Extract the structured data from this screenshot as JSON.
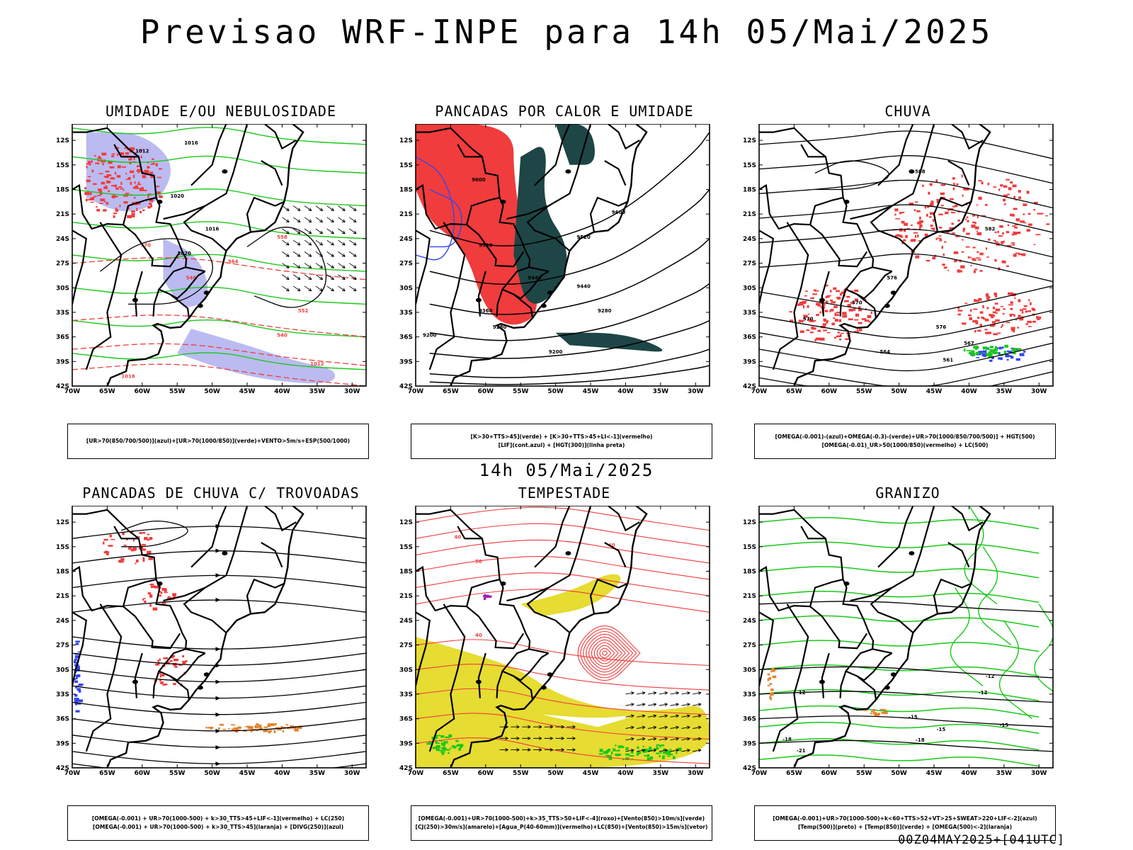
{
  "header": {
    "title": "Previsao WRF-INPE  para 14h 05/Mai/2025"
  },
  "middle": {
    "title": "14h 05/Mai/2025"
  },
  "footer": {
    "run_info": "00Z04MAY2025+[041UTC]"
  },
  "axes": {
    "lat_labels": [
      "12S",
      "15S",
      "18S",
      "21S",
      "24S",
      "27S",
      "30S",
      "33S",
      "36S",
      "39S",
      "42S"
    ],
    "lon_labels": [
      "70W",
      "65W",
      "60W",
      "55W",
      "50W",
      "45W",
      "40W",
      "35W",
      "30W"
    ]
  },
  "colors": {
    "green": "#19c819",
    "red": "#f03c3c",
    "blue": "#3246f0",
    "lavender": "#b4b4f0",
    "dark_teal": "#1e4646",
    "yellow": "#e6dc32",
    "orange": "#e6822d",
    "purple": "#a01eb4"
  },
  "panels": [
    {
      "title": "UMIDADE E/OU NEBULOSIDADE",
      "legend": [
        "[UR>70(850/700/500)](azul)+[UR>70(1000/850)](verde)+VENTO>5m/s+ESP(500/1000)"
      ],
      "contour_labels": [
        "1012",
        "1016",
        "1020",
        "1016",
        "1020",
        "570",
        "564",
        "558",
        "552",
        "546",
        "540"
      ]
    },
    {
      "title": "PANCADAS POR CALOR E UMIDADE",
      "legend": [
        "[K>30+TTS>45](verde) + [K>30+TTS>45+LI<-1](vermelho)",
        "[LIF](cont.azul) + [HGT(300)](linha preta)"
      ],
      "contour_labels": [
        "9600",
        "9600",
        "9520",
        "9520",
        "9440",
        "9440",
        "9360",
        "9280",
        "9280",
        "9200",
        "9200"
      ]
    },
    {
      "title": "CHUVA",
      "legend": [
        "[OMEGA(-0.001)-(azul)+OMEGA(-0.3)-(verde)+UR>70(1000/850/700/500)] + HGT(500)",
        "[OMEGA(-0.01)_UR>50(1000/850)(vermelho) + LC(500)"
      ],
      "contour_labels": [
        "588",
        "582",
        "576",
        "576",
        "570",
        "570",
        "567",
        "564",
        "561"
      ]
    },
    {
      "title": "PANCADAS DE CHUVA C/ TROVOADAS",
      "legend": [
        "[OMEGA(-0.001) + UR>70(1000-500) + k>30_TTS>45+LIF<-1](vermelho) + LC(250)",
        "[OMEGA(-0.001) + UR>70(1000-500) + k>30_TTS>45](laranja) + [DIVG(250)](azul)"
      ],
      "contour_labels": []
    },
    {
      "title": "TEMPESTADE",
      "legend": [
        "[OMEGA(-0.001)+UR>70(1000-500)+k>35_TTS>50+LIF<-4](roxo)+[Vento(850)>10m/s](verde)",
        "[CJ(250)>30m/s](amarelo)+[Agua_P(40-60mm)](vermelho)+LC(850)+[Vento(850)>15m/s](vetor)"
      ],
      "contour_labels": [
        "40",
        "40",
        "50",
        "40"
      ]
    },
    {
      "title": "GRANIZO",
      "legend": [
        "[OMEGA(-0.001)+UR>70(1000-500)+k<60+TTS>52+VT>25+SWEAT>220+LIF<-2](azul)",
        "[Temp(500)](preto) + [Temp(850)](verde) + [OMEGA(500)<-2](laranja)"
      ],
      "contour_labels": [
        "-12",
        "-12",
        "-12",
        "-15",
        "-15",
        "-15",
        "-18",
        "-18",
        "-21"
      ]
    }
  ]
}
